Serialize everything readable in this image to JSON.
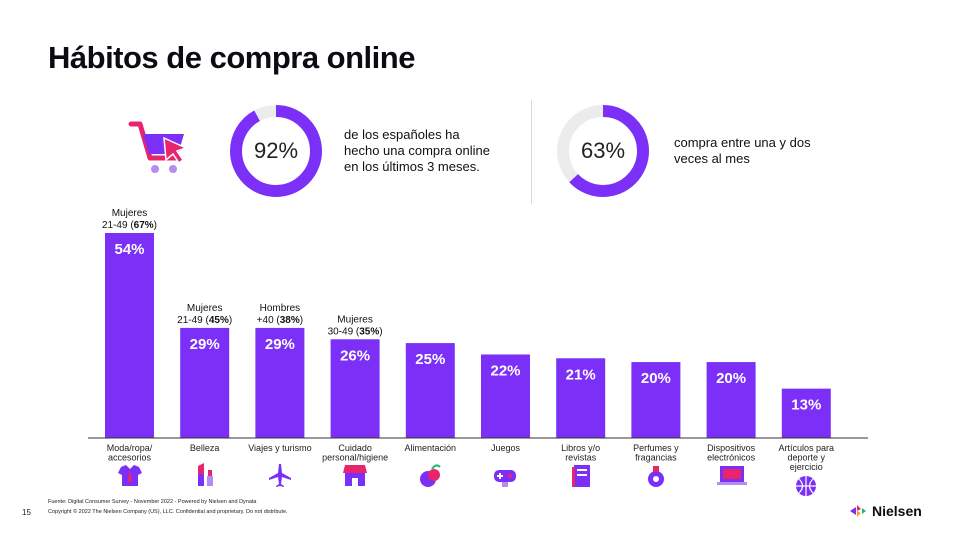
{
  "title": "Hábitos de compra online",
  "stats": [
    {
      "percent_label": "92%",
      "value": 92,
      "text_lines": [
        "de los españoles ha",
        "hecho una compra online",
        "en los últimos 3 meses."
      ]
    },
    {
      "percent_label": "63%",
      "value": 63,
      "text_lines": [
        "compra entre una y dos",
        "veces al mes"
      ]
    }
  ],
  "colors": {
    "accent": "#7b2ff7",
    "track": "#ececec",
    "pink": "#e8246c",
    "axis": "#333333"
  },
  "icons": [
    "shopping-cart-icon",
    "shirt-icon",
    "lipstick-icon",
    "airplane-icon",
    "store-icon",
    "fruit-icon",
    "gamepad-icon",
    "book-icon",
    "perfume-icon",
    "laptop-icon",
    "basketball-icon"
  ],
  "chart_data": {
    "type": "bar",
    "categories": [
      [
        "Moda/ropa/",
        "accesorios"
      ],
      [
        "Belleza"
      ],
      [
        "Viajes y turismo"
      ],
      [
        "Cuidado",
        "personal/higiene"
      ],
      [
        "Alimentación"
      ],
      [
        "Juegos"
      ],
      [
        "Libros y/o",
        "revistas"
      ],
      [
        "Perfumes y",
        "fragancias"
      ],
      [
        "Dispositivos",
        "electrónicos"
      ],
      [
        "Artículos para",
        "deporte y",
        "ejercicio"
      ]
    ],
    "values": [
      54,
      29,
      29,
      26,
      25,
      22,
      21,
      20,
      20,
      13
    ],
    "value_labels": [
      "54%",
      "29%",
      "29%",
      "26%",
      "25%",
      "22%",
      "21%",
      "20%",
      "20%",
      "13%"
    ],
    "annotations": [
      {
        "index": 0,
        "line1": "Mujeres",
        "line2": "21-49 (",
        "bold": "67%",
        "end": ")"
      },
      {
        "index": 1,
        "line1": "Mujeres",
        "line2": "21-49 (",
        "bold": "45%",
        "end": ")"
      },
      {
        "index": 2,
        "line1": "Hombres",
        "line2": "+40 (",
        "bold": "38%",
        "end": ")"
      },
      {
        "index": 3,
        "line1": "Mujeres",
        "line2": "30-49 (",
        "bold": "35%",
        "end": ")"
      }
    ],
    "ylim": [
      0,
      54
    ]
  },
  "footer": {
    "source": "Fuente: Digital Consumer Survey - November 2022 - Powered by Nielsen and Dynata",
    "copyright": "Copyright © 2022 The Nielsen Company (US), LLC. Confidential and proprietary. Do not distribute.",
    "page_number": "15",
    "logo_text": "Nielsen"
  }
}
